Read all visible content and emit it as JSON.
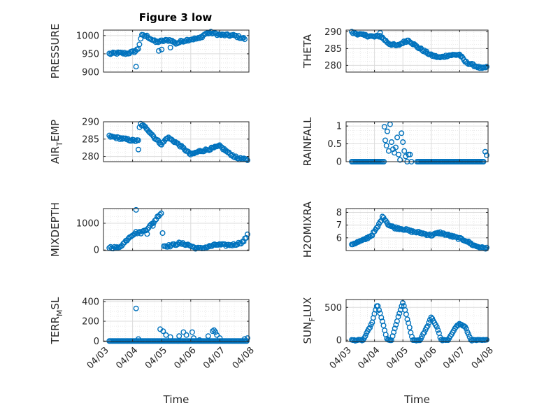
{
  "figure": {
    "title": "Figure 3 low",
    "marker_color": "#0072BD"
  },
  "chart_data": [
    {
      "type": "scatter",
      "ylabel": "PRESSURE",
      "xlabel": "",
      "ylim": [
        900,
        1015
      ],
      "yticks": [
        900,
        950,
        1000
      ],
      "ytick_labels": [
        "900",
        "950",
        "1000"
      ],
      "xlim": [
        0,
        5
      ],
      "xticks": [
        0,
        1,
        2,
        3,
        4,
        5
      ],
      "xtick_labels": [
        "04/03",
        "04/04",
        "04/05",
        "04/06",
        "04/07",
        "04/08"
      ],
      "grid": true,
      "show_xtick_labels": false,
      "anchors": [
        [
          0.2,
          950
        ],
        [
          0.5,
          952
        ],
        [
          0.8,
          951
        ],
        [
          1.1,
          957
        ],
        [
          1.2,
          965
        ],
        [
          1.3,
          1000
        ],
        [
          1.5,
          998
        ],
        [
          1.8,
          982
        ],
        [
          2.0,
          985
        ],
        [
          2.3,
          988
        ],
        [
          2.5,
          978
        ],
        [
          2.7,
          985
        ],
        [
          3.0,
          990
        ],
        [
          3.3,
          992
        ],
        [
          3.5,
          1005
        ],
        [
          3.7,
          1008
        ],
        [
          4.0,
          1002
        ],
        [
          4.5,
          1000
        ],
        [
          4.9,
          990
        ]
      ],
      "extra_points": [
        [
          1.12,
          915
        ],
        [
          1.9,
          958
        ],
        [
          2.0,
          962
        ],
        [
          2.3,
          967
        ]
      ],
      "n": 110,
      "noise": 3
    },
    {
      "type": "scatter",
      "ylabel": "THETA",
      "xlabel": "",
      "ylim": [
        278,
        290.5
      ],
      "yticks": [
        280,
        285,
        290
      ],
      "ytick_labels": [
        "280",
        "285",
        "290"
      ],
      "xlim": [
        0,
        5
      ],
      "xticks": [
        0,
        1,
        2,
        3,
        4,
        5
      ],
      "xtick_labels": [
        "04/03",
        "04/04",
        "04/05",
        "04/06",
        "04/07",
        "04/08"
      ],
      "grid": true,
      "show_xtick_labels": false,
      "anchors": [
        [
          0.2,
          289.8
        ],
        [
          0.6,
          289
        ],
        [
          1.0,
          288.5
        ],
        [
          1.2,
          288.8
        ],
        [
          1.5,
          286.5
        ],
        [
          1.8,
          285.8
        ],
        [
          2.0,
          286.8
        ],
        [
          2.2,
          287.5
        ],
        [
          2.5,
          285.5
        ],
        [
          2.8,
          284
        ],
        [
          3.0,
          283
        ],
        [
          3.3,
          282.3
        ],
        [
          3.6,
          283
        ],
        [
          4.0,
          283.2
        ],
        [
          4.2,
          281
        ],
        [
          4.5,
          280
        ],
        [
          4.8,
          279
        ],
        [
          4.95,
          279.5
        ]
      ],
      "extra_points": [
        [
          1.2,
          289.7
        ]
      ],
      "n": 120,
      "noise": 0.3
    },
    {
      "type": "scatter",
      "ylabel": "AIR_TEMP",
      "ylabel_main": "AIR",
      "ylabel_sub": "T",
      "ylabel_rest": "EMP",
      "xlabel": "",
      "ylim": [
        278.5,
        290
      ],
      "yticks": [
        280,
        285,
        290
      ],
      "ytick_labels": [
        "280",
        "285",
        "290"
      ],
      "xlim": [
        0,
        5
      ],
      "xticks": [
        0,
        1,
        2,
        3,
        4,
        5
      ],
      "xtick_labels": [
        "04/03",
        "04/04",
        "04/05",
        "04/06",
        "04/07",
        "04/08"
      ],
      "grid": true,
      "show_xtick_labels": false,
      "anchors": [
        [
          0.2,
          285.8
        ],
        [
          0.6,
          285.2
        ],
        [
          1.0,
          284.6
        ],
        [
          1.2,
          284.5
        ],
        [
          1.25,
          289.5
        ],
        [
          1.5,
          288
        ],
        [
          1.8,
          285
        ],
        [
          2.0,
          283.5
        ],
        [
          2.2,
          285.5
        ],
        [
          2.5,
          284
        ],
        [
          2.8,
          282
        ],
        [
          3.0,
          280.5
        ],
        [
          3.3,
          281.5
        ],
        [
          3.6,
          282
        ],
        [
          4.0,
          283
        ],
        [
          4.3,
          281
        ],
        [
          4.6,
          279.5
        ],
        [
          4.95,
          279
        ]
      ],
      "extra_points": [
        [
          1.2,
          282
        ]
      ],
      "n": 120,
      "noise": 0.3
    },
    {
      "type": "scatter",
      "ylabel": "RAINFALL",
      "xlabel": "",
      "ylim": [
        0,
        1.12
      ],
      "yticks": [
        0,
        0.5,
        1
      ],
      "ytick_labels": [
        "0",
        "0.5",
        "1"
      ],
      "xlim": [
        0,
        5
      ],
      "xticks": [
        0,
        1,
        2,
        3,
        4,
        5
      ],
      "xtick_labels": [
        "04/03",
        "04/04",
        "04/05",
        "04/06",
        "04/07",
        "04/08"
      ],
      "grid": true,
      "show_xtick_labels": false,
      "zero_ranges": [
        [
          0.2,
          1.3
        ],
        [
          2.5,
          4.85
        ]
      ],
      "points": [
        [
          1.35,
          0.98
        ],
        [
          1.38,
          0.6
        ],
        [
          1.42,
          0.45
        ],
        [
          1.45,
          0.85
        ],
        [
          1.5,
          0.3
        ],
        [
          1.55,
          1.05
        ],
        [
          1.6,
          0.55
        ],
        [
          1.65,
          0.35
        ],
        [
          1.7,
          0.25
        ],
        [
          1.75,
          0.4
        ],
        [
          1.8,
          0.68
        ],
        [
          1.85,
          0.2
        ],
        [
          1.9,
          0.05
        ],
        [
          1.95,
          0.8
        ],
        [
          2.0,
          0.55
        ],
        [
          2.05,
          0.3
        ],
        [
          2.1,
          0.15
        ],
        [
          2.15,
          0.0
        ],
        [
          2.2,
          0.2
        ],
        [
          2.25,
          0.2
        ],
        [
          1.33,
          0.0
        ],
        [
          2.3,
          0.0
        ],
        [
          4.9,
          0.28
        ],
        [
          4.95,
          0.18
        ]
      ],
      "n": 0,
      "noise": 0
    },
    {
      "type": "scatter",
      "ylabel": "MIXDEPTH",
      "xlabel": "",
      "ylim": [
        -20,
        1550
      ],
      "yticks": [
        0,
        1000
      ],
      "ytick_labels": [
        "0",
        "1000"
      ],
      "xlim": [
        0,
        5
      ],
      "xticks": [
        0,
        1,
        2,
        3,
        4,
        5
      ],
      "xtick_labels": [
        "04/03",
        "04/04",
        "04/05",
        "04/06",
        "04/07",
        "04/08"
      ],
      "grid": true,
      "show_xtick_labels": false,
      "anchors": [
        [
          0.2,
          100
        ],
        [
          0.5,
          80
        ],
        [
          0.7,
          250
        ],
        [
          0.9,
          500
        ],
        [
          1.1,
          650
        ],
        [
          1.3,
          650
        ],
        [
          1.5,
          800
        ],
        [
          1.7,
          1000
        ],
        [
          1.9,
          1300
        ],
        [
          2.0,
          1400
        ],
        [
          2.05,
          150
        ],
        [
          2.3,
          160
        ],
        [
          2.6,
          250
        ],
        [
          2.9,
          200
        ],
        [
          3.1,
          100
        ],
        [
          3.3,
          50
        ],
        [
          3.6,
          120
        ],
        [
          3.9,
          200
        ],
        [
          4.2,
          180
        ],
        [
          4.5,
          200
        ],
        [
          4.8,
          300
        ],
        [
          4.95,
          550
        ]
      ],
      "extra_points": [
        [
          1.12,
          1500
        ],
        [
          1.5,
          600
        ],
        [
          1.7,
          900
        ]
      ],
      "n": 110,
      "noise": 40
    },
    {
      "type": "scatter",
      "ylabel": "H2OMIXRA",
      "xlabel": "",
      "ylim": [
        5,
        8.3
      ],
      "yticks": [
        6,
        7,
        8
      ],
      "ytick_labels": [
        "6",
        "7",
        "8"
      ],
      "xlim": [
        0,
        5
      ],
      "xticks": [
        0,
        1,
        2,
        3,
        4,
        5
      ],
      "xtick_labels": [
        "04/03",
        "04/04",
        "04/05",
        "04/06",
        "04/07",
        "04/08"
      ],
      "grid": true,
      "show_xtick_labels": false,
      "anchors": [
        [
          0.2,
          5.5
        ],
        [
          0.6,
          5.8
        ],
        [
          0.9,
          6.2
        ],
        [
          1.1,
          6.8
        ],
        [
          1.3,
          7.7
        ],
        [
          1.5,
          7.0
        ],
        [
          1.7,
          6.8
        ],
        [
          2.0,
          6.7
        ],
        [
          2.3,
          6.5
        ],
        [
          2.6,
          6.4
        ],
        [
          3.0,
          6.2
        ],
        [
          3.3,
          6.4
        ],
        [
          3.6,
          6.2
        ],
        [
          3.9,
          6.0
        ],
        [
          4.2,
          5.8
        ],
        [
          4.5,
          5.4
        ],
        [
          4.8,
          5.2
        ],
        [
          4.95,
          5.2
        ]
      ],
      "n": 120,
      "noise": 0.08
    },
    {
      "type": "scatter",
      "ylabel": "TERR_MSL",
      "ylabel_main": "TERR",
      "ylabel_sub": "M",
      "ylabel_rest": "SL",
      "xlabel": "Time",
      "ylim": [
        -5,
        420
      ],
      "yticks": [
        0,
        200,
        400
      ],
      "ytick_labels": [
        "0",
        "200",
        "400"
      ],
      "xlim": [
        0,
        5
      ],
      "xticks": [
        0,
        1,
        2,
        3,
        4,
        5
      ],
      "xtick_labels": [
        "04/03",
        "04/04",
        "04/05",
        "04/06",
        "04/07",
        "04/08"
      ],
      "grid": true,
      "show_xtick_labels": true,
      "zero_ranges": [
        [
          0.2,
          4.95
        ]
      ],
      "points": [
        [
          1.12,
          330
        ],
        [
          1.2,
          20
        ],
        [
          1.95,
          120
        ],
        [
          2.05,
          100
        ],
        [
          2.15,
          60
        ],
        [
          2.3,
          40
        ],
        [
          2.6,
          50
        ],
        [
          2.75,
          90
        ],
        [
          2.85,
          60
        ],
        [
          3.05,
          90
        ],
        [
          3.1,
          30
        ],
        [
          3.3,
          10
        ],
        [
          3.6,
          50
        ],
        [
          3.75,
          100
        ],
        [
          3.8,
          110
        ],
        [
          3.85,
          90
        ],
        [
          3.9,
          60
        ],
        [
          4.0,
          30
        ],
        [
          4.85,
          20
        ],
        [
          4.95,
          30
        ]
      ],
      "n": 0,
      "noise": 0
    },
    {
      "type": "scatter",
      "ylabel": "SUN_FLUX",
      "ylabel_main": "SUN",
      "ylabel_sub": "F",
      "ylabel_rest": "LUX",
      "xlabel": "Time",
      "ylim": [
        -20,
        620
      ],
      "yticks": [
        0,
        500
      ],
      "ytick_labels": [
        "0",
        "500"
      ],
      "xlim": [
        0,
        5
      ],
      "xticks": [
        0,
        1,
        2,
        3,
        4,
        5
      ],
      "xtick_labels": [
        "04/03",
        "04/04",
        "04/05",
        "04/06",
        "04/07",
        "04/08"
      ],
      "grid": true,
      "show_xtick_labels": true,
      "anchors": [
        [
          0.2,
          0
        ],
        [
          0.6,
          0
        ],
        [
          0.9,
          250
        ],
        [
          1.1,
          550
        ],
        [
          1.3,
          250
        ],
        [
          1.45,
          0
        ],
        [
          1.6,
          0
        ],
        [
          1.8,
          300
        ],
        [
          2.0,
          580
        ],
        [
          2.2,
          250
        ],
        [
          2.35,
          0
        ],
        [
          2.6,
          0
        ],
        [
          2.85,
          200
        ],
        [
          3.0,
          350
        ],
        [
          3.2,
          200
        ],
        [
          3.35,
          0
        ],
        [
          3.6,
          0
        ],
        [
          3.85,
          200
        ],
        [
          4.0,
          250
        ],
        [
          4.2,
          200
        ],
        [
          4.4,
          0
        ],
        [
          4.95,
          0
        ]
      ],
      "n": 120,
      "noise": 8
    }
  ]
}
